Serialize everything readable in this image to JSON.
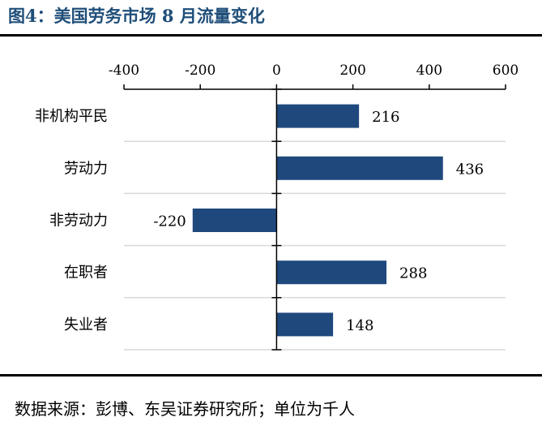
{
  "title": "图4：美国劳务市场 8 月流量变化",
  "source": "数据来源：彭博、东吴证券研究所；单位为千人",
  "colors": {
    "bar": "#1f497d",
    "grid": "#d9d9d9",
    "title": "#1f4e79"
  },
  "chart_data": {
    "type": "bar",
    "orientation": "horizontal",
    "categories": [
      "非机构平民",
      "劳动力",
      "非劳动力",
      "在职者",
      "失业者"
    ],
    "values": [
      216,
      436,
      -220,
      288,
      148
    ],
    "xlim": [
      -400,
      600
    ],
    "xticks": [
      -400,
      -200,
      0,
      200,
      400,
      600
    ],
    "x_axis_position": "top",
    "grid": true,
    "legend": "none"
  }
}
